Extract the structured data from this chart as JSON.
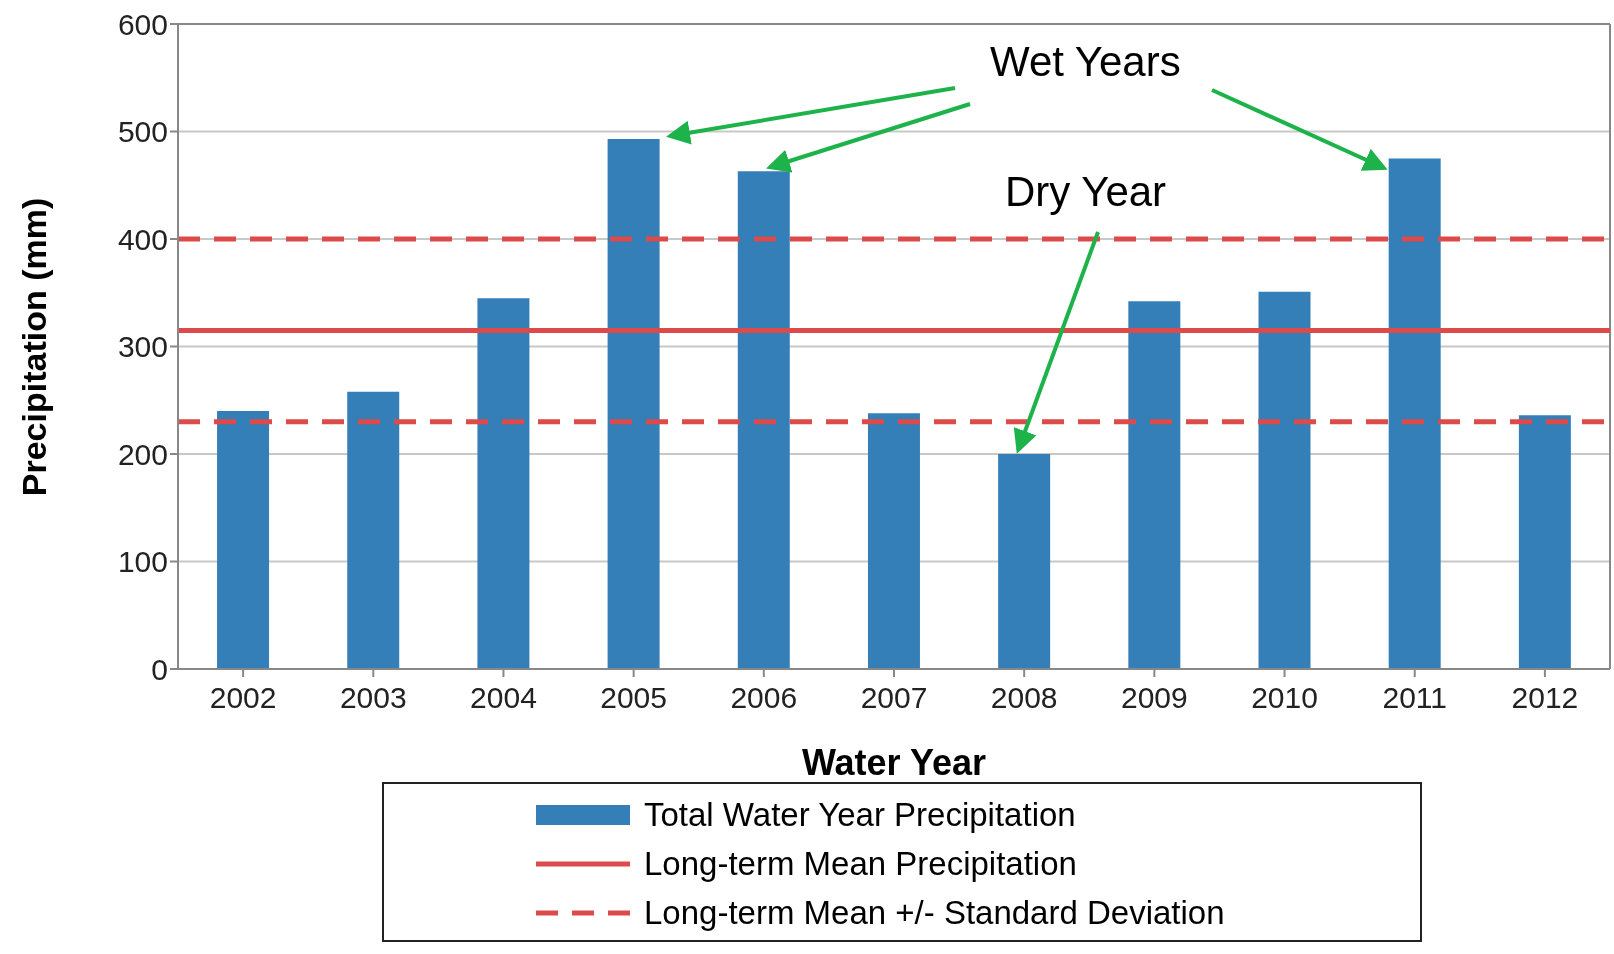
{
  "chart_data": {
    "type": "bar",
    "xlabel": "Water Year",
    "ylabel": "Precipitation (mm)",
    "categories": [
      "2002",
      "2003",
      "2004",
      "2005",
      "2006",
      "2007",
      "2008",
      "2009",
      "2010",
      "2011",
      "2012"
    ],
    "series": [
      {
        "name": "Total Water Year Precipitation",
        "color": "#357fb8",
        "values": [
          240,
          258,
          345,
          493,
          463,
          238,
          200,
          342,
          351,
          475,
          236
        ]
      }
    ],
    "ylim": [
      0,
      600
    ],
    "yticks": [
      0,
      100,
      200,
      300,
      400,
      500,
      600
    ],
    "grid": "y",
    "legend": "bottom",
    "ref_lines": [
      {
        "axis": "y",
        "value": 315,
        "label": "Long-term Mean Precipitation",
        "color": "#dc4a4a",
        "line_style": "solid"
      },
      {
        "axis": "y",
        "value": 400,
        "label": "Long-term Mean +/- Standard Deviation",
        "color": "#dc4a4a",
        "line_style": "dashed"
      },
      {
        "axis": "y",
        "value": 230,
        "color": "#dc4a4a",
        "line_style": "dashed"
      }
    ],
    "annotations": [
      {
        "text": "Wet Years",
        "x": "2006",
        "y": 463
      },
      {
        "text": "Dry Year",
        "x": "2008",
        "y": 200
      }
    ]
  }
}
